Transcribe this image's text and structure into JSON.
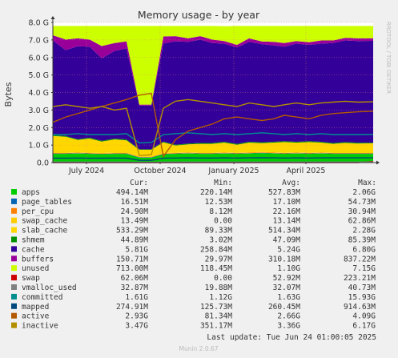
{
  "title": "Memory usage - by year",
  "ylabel": "Bytes",
  "watermark": "RRDTOOL / TOBI OETIKER",
  "footer": "Munin 2.0.67",
  "last_update": "Last update: Tue Jun 24 01:00:05 2025",
  "legend_header": {
    "cur": "Cur:",
    "min": "Min:",
    "avg": "Avg:",
    "max": "Max:"
  },
  "chart_data": {
    "type": "area",
    "title": "Memory usage - by year",
    "ylabel": "Bytes",
    "ylim": [
      0,
      8.0
    ],
    "yticks": [
      {
        "v": 0,
        "label": "0.0"
      },
      {
        "v": 1,
        "label": "1.0 G"
      },
      {
        "v": 2,
        "label": "2.0 G"
      },
      {
        "v": 3,
        "label": "3.0 G"
      },
      {
        "v": 4,
        "label": "4.0 G"
      },
      {
        "v": 5,
        "label": "5.0 G"
      },
      {
        "v": 6,
        "label": "6.0 G"
      },
      {
        "v": 7,
        "label": "7.0 G"
      },
      {
        "v": 8,
        "label": "8.0 G"
      }
    ],
    "xlim": [
      "2024-05-20",
      "2025-06-24"
    ],
    "xticks": [
      {
        "date": "2024-07-01",
        "label": "July 2024"
      },
      {
        "date": "2024-10-01",
        "label": "October 2024"
      },
      {
        "date": "2025-01-01",
        "label": "January 2025"
      },
      {
        "date": "2025-04-01",
        "label": "April 2025"
      }
    ],
    "grid": true,
    "x": [
      "2024-05-20",
      "2024-06-05",
      "2024-06-20",
      "2024-07-05",
      "2024-07-20",
      "2024-08-05",
      "2024-08-20",
      "2024-09-05",
      "2024-09-20",
      "2024-10-05",
      "2024-10-20",
      "2024-11-05",
      "2024-11-20",
      "2024-12-05",
      "2024-12-20",
      "2025-01-05",
      "2025-01-20",
      "2025-02-05",
      "2025-02-20",
      "2025-03-05",
      "2025-03-20",
      "2025-04-05",
      "2025-04-20",
      "2025-05-05",
      "2025-05-20",
      "2025-06-05",
      "2025-06-24"
    ],
    "total": 7.8,
    "series": [
      {
        "name": "apps",
        "color": "#00cc00",
        "values": [
          0.5,
          0.5,
          0.52,
          0.5,
          0.48,
          0.5,
          0.5,
          0.28,
          0.28,
          0.48,
          0.5,
          0.52,
          0.5,
          0.5,
          0.52,
          0.5,
          0.52,
          0.54,
          0.52,
          0.5,
          0.52,
          0.5,
          0.52,
          0.5,
          0.5,
          0.5,
          0.5
        ]
      },
      {
        "name": "page_tables",
        "color": "#0066b3",
        "values": [
          0.02,
          0.02,
          0.02,
          0.02,
          0.02,
          0.02,
          0.02,
          0.02,
          0.02,
          0.02,
          0.02,
          0.02,
          0.02,
          0.02,
          0.02,
          0.02,
          0.02,
          0.02,
          0.02,
          0.02,
          0.02,
          0.02,
          0.02,
          0.02,
          0.02,
          0.02,
          0.02
        ]
      },
      {
        "name": "per_cpu",
        "color": "#ff8000",
        "values": [
          0.03,
          0.03,
          0.03,
          0.03,
          0.03,
          0.03,
          0.03,
          0.03,
          0.03,
          0.03,
          0.03,
          0.03,
          0.03,
          0.03,
          0.03,
          0.03,
          0.03,
          0.03,
          0.03,
          0.03,
          0.03,
          0.03,
          0.03,
          0.03,
          0.03,
          0.03,
          0.03
        ]
      },
      {
        "name": "swap_cache",
        "color": "#ffcc00",
        "values": [
          0.02,
          0.02,
          0.02,
          0.02,
          0.02,
          0.02,
          0.02,
          0.0,
          0.0,
          0.02,
          0.02,
          0.02,
          0.02,
          0.02,
          0.02,
          0.02,
          0.02,
          0.02,
          0.02,
          0.02,
          0.02,
          0.02,
          0.02,
          0.02,
          0.02,
          0.02,
          0.02
        ]
      },
      {
        "name": "slab_cache",
        "color": "#ffd700",
        "values": [
          0.95,
          0.9,
          0.7,
          0.8,
          0.65,
          0.75,
          0.7,
          0.4,
          0.4,
          0.6,
          0.4,
          0.45,
          0.5,
          0.5,
          0.55,
          0.45,
          0.55,
          0.5,
          0.55,
          0.6,
          0.55,
          0.6,
          0.55,
          0.5,
          0.55,
          0.52,
          0.53
        ]
      },
      {
        "name": "shmem",
        "color": "#008f00",
        "values": [
          0.05,
          0.05,
          0.05,
          0.05,
          0.05,
          0.05,
          0.05,
          0.03,
          0.03,
          0.05,
          0.05,
          0.05,
          0.05,
          0.05,
          0.05,
          0.05,
          0.05,
          0.05,
          0.05,
          0.05,
          0.05,
          0.05,
          0.05,
          0.05,
          0.05,
          0.05,
          0.04
        ]
      },
      {
        "name": "cache",
        "color": "#330099",
        "values": [
          5.4,
          4.9,
          5.3,
          5.2,
          4.7,
          5.0,
          5.2,
          2.5,
          2.5,
          5.6,
          5.9,
          5.8,
          5.9,
          5.7,
          5.6,
          5.5,
          5.7,
          5.6,
          5.5,
          5.4,
          5.6,
          5.5,
          5.6,
          5.7,
          5.8,
          5.8,
          5.81
        ]
      },
      {
        "name": "buffers",
        "color": "#990099",
        "values": [
          0.3,
          0.6,
          0.45,
          0.4,
          0.7,
          0.45,
          0.4,
          0.05,
          0.05,
          0.4,
          0.3,
          0.2,
          0.2,
          0.2,
          0.15,
          0.15,
          0.2,
          0.15,
          0.2,
          0.2,
          0.15,
          0.15,
          0.18,
          0.15,
          0.15,
          0.15,
          0.15
        ]
      },
      {
        "name": "unused",
        "color": "#ccff00",
        "values": [
          0.53,
          0.78,
          0.71,
          0.78,
          1.15,
          0.98,
          0.88,
          4.49,
          4.49,
          0.6,
          0.58,
          0.71,
          0.58,
          0.78,
          0.84,
          1.08,
          0.71,
          0.89,
          0.91,
          0.98,
          0.86,
          0.93,
          0.83,
          0.83,
          0.68,
          0.71,
          0.7
        ]
      }
    ],
    "lines": [
      {
        "name": "swap",
        "color": "#cc0000",
        "values": [
          0.0,
          0.0,
          0.0,
          0.0,
          0.0,
          0.0,
          0.0,
          0.0,
          0.0,
          0.0,
          0.0,
          0.0,
          0.0,
          0.0,
          0.0,
          0.0,
          0.0,
          0.0,
          0.0,
          0.0,
          0.0,
          0.0,
          0.0,
          0.0,
          0.0,
          0.0,
          0.06
        ]
      },
      {
        "name": "vmalloc_used",
        "color": "#808080",
        "values": [
          0.03,
          0.03,
          0.03,
          0.03,
          0.03,
          0.03,
          0.03,
          0.02,
          0.02,
          0.03,
          0.03,
          0.03,
          0.03,
          0.03,
          0.03,
          0.03,
          0.03,
          0.03,
          0.03,
          0.03,
          0.03,
          0.03,
          0.03,
          0.03,
          0.03,
          0.03,
          0.03
        ]
      },
      {
        "name": "committed",
        "color": "#008f8f",
        "values": [
          1.6,
          1.6,
          1.65,
          1.6,
          1.6,
          1.6,
          1.65,
          1.12,
          1.15,
          1.6,
          1.65,
          1.7,
          1.65,
          1.6,
          1.65,
          1.6,
          1.65,
          1.7,
          1.65,
          1.6,
          1.65,
          1.6,
          1.65,
          1.6,
          1.6,
          1.6,
          1.61
        ]
      },
      {
        "name": "mapped",
        "color": "#00487d",
        "values": [
          0.25,
          0.25,
          0.26,
          0.25,
          0.25,
          0.26,
          0.25,
          0.13,
          0.13,
          0.25,
          0.26,
          0.27,
          0.26,
          0.26,
          0.27,
          0.26,
          0.27,
          0.28,
          0.27,
          0.26,
          0.27,
          0.26,
          0.27,
          0.27,
          0.27,
          0.27,
          0.27
        ]
      },
      {
        "name": "active",
        "color": "#b35a00",
        "values": [
          2.3,
          2.6,
          2.8,
          3.0,
          3.2,
          3.4,
          3.6,
          3.85,
          3.95,
          0.35,
          1.3,
          1.8,
          2.0,
          2.2,
          2.5,
          2.6,
          2.5,
          2.4,
          2.5,
          2.7,
          2.6,
          2.5,
          2.7,
          2.8,
          2.85,
          2.9,
          2.93
        ]
      },
      {
        "name": "inactive",
        "color": "#b38f00",
        "values": [
          3.2,
          3.3,
          3.2,
          3.1,
          3.2,
          3.0,
          3.1,
          0.4,
          0.45,
          3.1,
          3.5,
          3.6,
          3.5,
          3.4,
          3.3,
          3.2,
          3.4,
          3.3,
          3.2,
          3.3,
          3.4,
          3.3,
          3.4,
          3.45,
          3.5,
          3.45,
          3.47
        ]
      }
    ]
  },
  "legend": [
    {
      "name": "apps",
      "color": "#00cc00",
      "cur": "494.14M",
      "min": "220.14M",
      "avg": "527.83M",
      "max": "2.06G"
    },
    {
      "name": "page_tables",
      "color": "#0066b3",
      "cur": "16.51M",
      "min": "12.53M",
      "avg": "17.10M",
      "max": "54.73M"
    },
    {
      "name": "per_cpu",
      "color": "#ff8000",
      "cur": "24.90M",
      "min": "8.12M",
      "avg": "22.16M",
      "max": "30.94M"
    },
    {
      "name": "swap_cache",
      "color": "#ffcc00",
      "cur": "13.49M",
      "min": "0.00",
      "avg": "13.14M",
      "max": "62.86M"
    },
    {
      "name": "slab_cache",
      "color": "#ffd700",
      "cur": "533.29M",
      "min": "89.33M",
      "avg": "514.34M",
      "max": "2.28G"
    },
    {
      "name": "shmem",
      "color": "#008f00",
      "cur": "44.89M",
      "min": "3.02M",
      "avg": "47.09M",
      "max": "85.39M"
    },
    {
      "name": "cache",
      "color": "#330099",
      "cur": "5.81G",
      "min": "258.84M",
      "avg": "5.24G",
      "max": "6.80G"
    },
    {
      "name": "buffers",
      "color": "#990099",
      "cur": "150.71M",
      "min": "29.97M",
      "avg": "310.18M",
      "max": "837.22M"
    },
    {
      "name": "unused",
      "color": "#ccff00",
      "cur": "713.00M",
      "min": "118.45M",
      "avg": "1.10G",
      "max": "7.15G"
    },
    {
      "name": "swap",
      "color": "#cc0000",
      "cur": "62.06M",
      "min": "0.00",
      "avg": "52.92M",
      "max": "223.21M"
    },
    {
      "name": "vmalloc_used",
      "color": "#808080",
      "cur": "32.87M",
      "min": "19.88M",
      "avg": "32.07M",
      "max": "40.73M"
    },
    {
      "name": "committed",
      "color": "#008f8f",
      "cur": "1.61G",
      "min": "1.12G",
      "avg": "1.63G",
      "max": "15.93G"
    },
    {
      "name": "mapped",
      "color": "#00487d",
      "cur": "274.91M",
      "min": "125.73M",
      "avg": "260.45M",
      "max": "914.63M"
    },
    {
      "name": "active",
      "color": "#b35a00",
      "cur": "2.93G",
      "min": "81.34M",
      "avg": "2.66G",
      "max": "4.09G"
    },
    {
      "name": "inactive",
      "color": "#b38f00",
      "cur": "3.47G",
      "min": "351.17M",
      "avg": "3.36G",
      "max": "6.17G"
    }
  ]
}
